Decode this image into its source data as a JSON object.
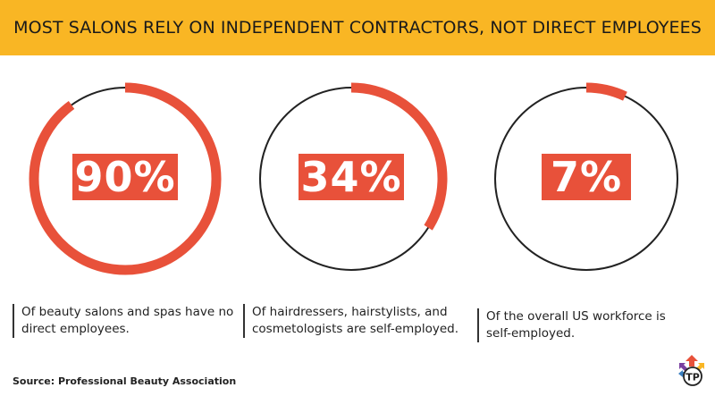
{
  "header": {
    "title": "MOST SALONS RELY ON INDEPENDENT CONTRACTORS, NOT DIRECT EMPLOYEES"
  },
  "chart_data": {
    "type": "pie",
    "title": "MOST SALONS RELY ON INDEPENDENT CONTRACTORS, NOT DIRECT EMPLOYEES",
    "items": [
      {
        "percent": 90,
        "value_label": "90%",
        "description": "Of beauty salons and spas have no direct employees.",
        "line1": "Of beauty salons and spas have no",
        "line2": "direct employees."
      },
      {
        "percent": 34,
        "value_label": "34%",
        "description": "Of hairdressers, hairstylists, and cosmetologists are self-employed.",
        "line1": "Of hairdressers, hairstylists, and",
        "line2": "cosmetologists are self-employed."
      },
      {
        "percent": 7,
        "value_label": "7%",
        "description": "Of the overall US workforce is self-employed.",
        "line1": "Of the overall US workforce is",
        "line2": "self-employed."
      }
    ],
    "colors": {
      "ring": "#e8513a",
      "ring_dark": "#c73a26",
      "track": "#222222",
      "header": "#f9b624"
    }
  },
  "source": "Source: Professional Beauty Association",
  "logo": {
    "icon": "tp-logo-icon",
    "text": "TP"
  }
}
